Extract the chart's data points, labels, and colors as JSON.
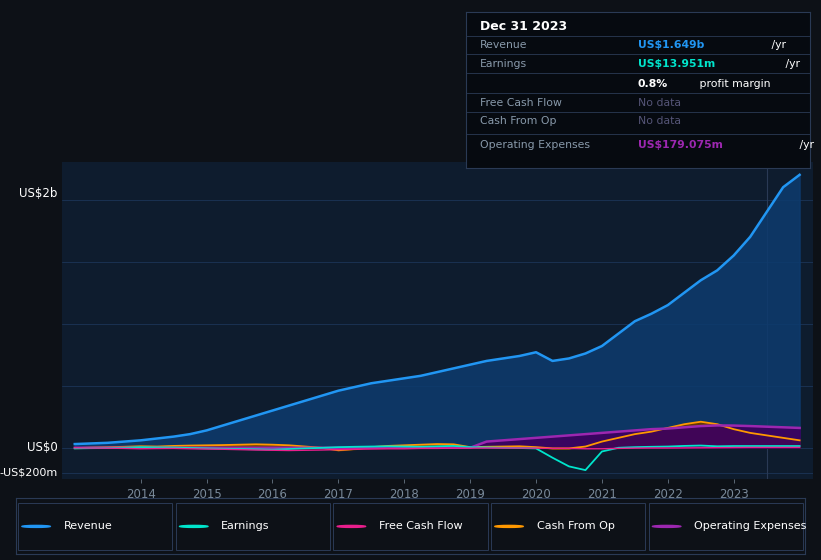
{
  "bg_color": "#0d1117",
  "plot_bg_color": "#0e1c2e",
  "grid_color": "#1e3a5f",
  "years": [
    2013.0,
    2013.25,
    2013.5,
    2013.75,
    2014.0,
    2014.25,
    2014.5,
    2014.75,
    2015.0,
    2015.25,
    2015.5,
    2015.75,
    2016.0,
    2016.25,
    2016.5,
    2016.75,
    2017.0,
    2017.25,
    2017.5,
    2017.75,
    2018.0,
    2018.25,
    2018.5,
    2018.75,
    2019.0,
    2019.25,
    2019.5,
    2019.75,
    2020.0,
    2020.25,
    2020.5,
    2020.75,
    2021.0,
    2021.25,
    2021.5,
    2021.75,
    2022.0,
    2022.25,
    2022.5,
    2022.75,
    2023.0,
    2023.25,
    2023.5,
    2023.75,
    2024.0
  ],
  "revenue": [
    30,
    35,
    40,
    50,
    60,
    75,
    90,
    110,
    140,
    180,
    220,
    260,
    300,
    340,
    380,
    420,
    460,
    490,
    520,
    540,
    560,
    580,
    610,
    640,
    670,
    700,
    720,
    740,
    770,
    700,
    720,
    760,
    820,
    920,
    1020,
    1080,
    1150,
    1250,
    1350,
    1430,
    1550,
    1700,
    1900,
    2100,
    2200
  ],
  "earnings": [
    -5,
    -3,
    -2,
    0,
    5,
    3,
    2,
    -2,
    -5,
    -8,
    -10,
    -12,
    -15,
    -10,
    -5,
    0,
    5,
    8,
    10,
    12,
    10,
    8,
    12,
    15,
    5,
    3,
    0,
    -2,
    -5,
    -80,
    -150,
    -180,
    -30,
    0,
    5,
    8,
    10,
    15,
    18,
    12,
    14,
    14,
    14,
    14,
    14
  ],
  "free_cash_flow": [
    0,
    -2,
    -3,
    -5,
    -8,
    -6,
    -5,
    -8,
    -10,
    -12,
    -15,
    -18,
    -20,
    -22,
    -20,
    -18,
    -15,
    -12,
    -10,
    -8,
    -8,
    -5,
    -5,
    -3,
    -3,
    -2,
    -2,
    -2,
    -3,
    -5,
    -5,
    -8,
    -8,
    -5,
    -3,
    -2,
    -2,
    -1,
    0,
    1,
    2,
    3,
    3,
    3,
    3
  ],
  "cash_from_op": [
    -3,
    2,
    5,
    8,
    12,
    10,
    15,
    18,
    20,
    22,
    25,
    28,
    25,
    20,
    10,
    0,
    -20,
    -10,
    5,
    15,
    20,
    25,
    30,
    28,
    5,
    8,
    10,
    12,
    5,
    -5,
    -5,
    10,
    50,
    80,
    110,
    130,
    160,
    190,
    210,
    190,
    150,
    120,
    100,
    80,
    60
  ],
  "op_expenses": [
    0,
    0,
    0,
    0,
    0,
    0,
    0,
    0,
    0,
    0,
    0,
    0,
    0,
    0,
    0,
    0,
    0,
    0,
    0,
    0,
    0,
    0,
    0,
    0,
    0,
    50,
    60,
    70,
    80,
    90,
    100,
    110,
    120,
    130,
    140,
    150,
    155,
    165,
    175,
    180,
    179,
    175,
    170,
    165,
    160
  ],
  "ylim_min": -250,
  "ylim_max": 2300,
  "xlim_min": 2012.8,
  "xlim_max": 2024.2,
  "x_tick_positions": [
    2014,
    2015,
    2016,
    2017,
    2018,
    2019,
    2020,
    2021,
    2022,
    2023
  ],
  "x_tick_labels": [
    "2014",
    "2015",
    "2016",
    "2017",
    "2018",
    "2019",
    "2020",
    "2021",
    "2022",
    "2023"
  ],
  "revenue_color": "#2196f3",
  "revenue_fill": "#0d3b6e",
  "earnings_color": "#00e5cc",
  "fcf_color": "#e91e8c",
  "cfo_color": "#ff9800",
  "cfo_fill": "#6b3a00",
  "opex_color": "#9c27b0",
  "opex_fill": "#3d0060",
  "highlight_x": 2023.5,
  "tooltip": {
    "title": "Dec 31 2023",
    "rows": [
      {
        "label": "Revenue",
        "value": "US$1.649b",
        "suffix": " /yr",
        "value_color": "#2196f3",
        "nodata": false
      },
      {
        "label": "Earnings",
        "value": "US$13.951m",
        "suffix": " /yr",
        "value_color": "#00e5cc",
        "nodata": false
      },
      {
        "label": "",
        "value": "0.8%",
        "suffix": " profit margin",
        "value_color": "#ffffff",
        "nodata": false
      },
      {
        "label": "Free Cash Flow",
        "value": "No data",
        "suffix": "",
        "value_color": "#555577",
        "nodata": true
      },
      {
        "label": "Cash From Op",
        "value": "No data",
        "suffix": "",
        "value_color": "#555577",
        "nodata": true
      },
      {
        "label": "Operating Expenses",
        "value": "US$179.075m",
        "suffix": " /yr",
        "value_color": "#9c27b0",
        "nodata": false
      }
    ]
  },
  "legend_items": [
    {
      "label": "Revenue",
      "color": "#2196f3"
    },
    {
      "label": "Earnings",
      "color": "#00e5cc"
    },
    {
      "label": "Free Cash Flow",
      "color": "#e91e8c"
    },
    {
      "label": "Cash From Op",
      "color": "#ff9800"
    },
    {
      "label": "Operating Expenses",
      "color": "#9c27b0"
    }
  ]
}
